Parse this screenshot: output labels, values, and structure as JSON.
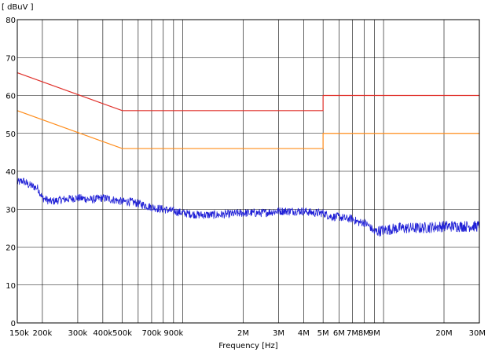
{
  "chart_data": {
    "type": "line",
    "title": "",
    "ylabel": "[ dBuV ]",
    "xlabel": "Frequency [Hz]",
    "xscale": "log",
    "xlim": [
      150000,
      30000000
    ],
    "ylim": [
      0,
      80
    ],
    "grid": true,
    "y_ticks": [
      {
        "value": 0,
        "label": "0"
      },
      {
        "value": 10,
        "label": "10"
      },
      {
        "value": 20,
        "label": "20"
      },
      {
        "value": 30,
        "label": "30"
      },
      {
        "value": 40,
        "label": "40"
      },
      {
        "value": 50,
        "label": "50"
      },
      {
        "value": 60,
        "label": "60"
      },
      {
        "value": 70,
        "label": "70"
      },
      {
        "value": 80,
        "label": "80"
      }
    ],
    "x_ticks": [
      {
        "value": 150000,
        "label": "150k"
      },
      {
        "value": 200000,
        "label": "200k"
      },
      {
        "value": 300000,
        "label": "300k"
      },
      {
        "value": 400000,
        "label": "400k"
      },
      {
        "value": 500000,
        "label": "500k"
      },
      {
        "value": 700000,
        "label": "700k"
      },
      {
        "value": 900000,
        "label": "900k"
      },
      {
        "value": 2000000,
        "label": "2M"
      },
      {
        "value": 3000000,
        "label": "3M"
      },
      {
        "value": 4000000,
        "label": "4M"
      },
      {
        "value": 5000000,
        "label": "5M"
      },
      {
        "value": 6000000,
        "label": "6M"
      },
      {
        "value": 7000000,
        "label": "7M"
      },
      {
        "value": 8000000,
        "label": "8M"
      },
      {
        "value": 9000000,
        "label": "9M"
      },
      {
        "value": 20000000,
        "label": "20M"
      },
      {
        "value": 30000000,
        "label": "30M"
      }
    ],
    "x_gridlines": [
      150000,
      200000,
      300000,
      400000,
      500000,
      600000,
      700000,
      800000,
      900000,
      1000000,
      2000000,
      3000000,
      4000000,
      5000000,
      6000000,
      7000000,
      8000000,
      9000000,
      10000000,
      20000000,
      30000000
    ],
    "series": [
      {
        "color": "#e0302a",
        "x": [
          150000,
          500000,
          500000,
          5000000,
          5000000,
          30000000
        ],
        "y": [
          66,
          56,
          56,
          56,
          60,
          60
        ]
      },
      {
        "color": "#ff8c1a",
        "x": [
          150000,
          500000,
          500000,
          5000000,
          5000000,
          30000000
        ],
        "y": [
          56,
          46,
          46,
          46,
          50,
          50
        ]
      },
      {
        "color": "#1f1fd6",
        "x": [
          150000,
          160000,
          170000,
          180000,
          190000,
          200000,
          220000,
          250000,
          300000,
          350000,
          400000,
          450000,
          500000,
          550000,
          600000,
          650000,
          700000,
          800000,
          900000,
          1000000,
          1200000,
          1500000,
          2000000,
          2500000,
          3000000,
          3500000,
          4000000,
          4500000,
          5000000,
          5500000,
          6000000,
          6500000,
          7000000,
          7500000,
          8000000,
          8500000,
          9000000,
          10000000,
          12000000,
          15000000,
          20000000,
          25000000,
          30000000
        ],
        "y": [
          37,
          37.5,
          36.5,
          36,
          35.5,
          33,
          32,
          32.5,
          33,
          32.5,
          33,
          32.5,
          32,
          32,
          31.5,
          31,
          30.5,
          30,
          29.5,
          29,
          28.5,
          28.5,
          29,
          29,
          29.5,
          29.5,
          29.5,
          29,
          29,
          28,
          28,
          27.5,
          27.5,
          26.5,
          26.5,
          25.5,
          24,
          24.5,
          25,
          25,
          25.5,
          25.5,
          25.5
        ]
      }
    ]
  }
}
